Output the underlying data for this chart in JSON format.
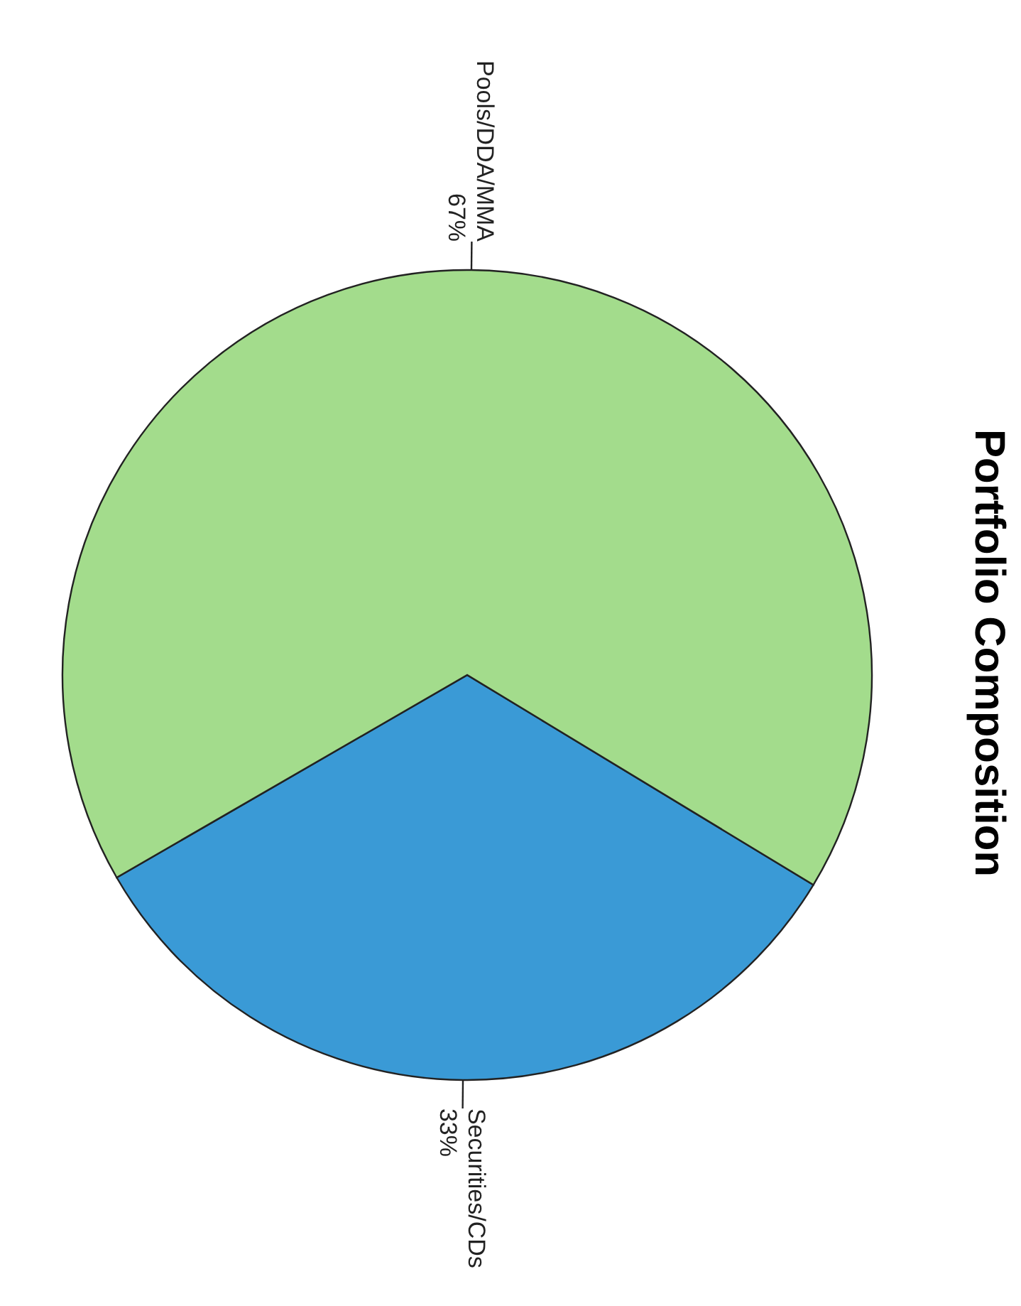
{
  "chart_data": {
    "type": "pie",
    "title": "Portfolio Composition",
    "categories": [
      "Securities/CDs",
      "Pools/DDA/MMA"
    ],
    "values": [
      33,
      67
    ],
    "value_labels": [
      "33%",
      "67%"
    ],
    "colors": [
      "#3a9ad6",
      "#a3dc8c"
    ],
    "legend": false
  }
}
